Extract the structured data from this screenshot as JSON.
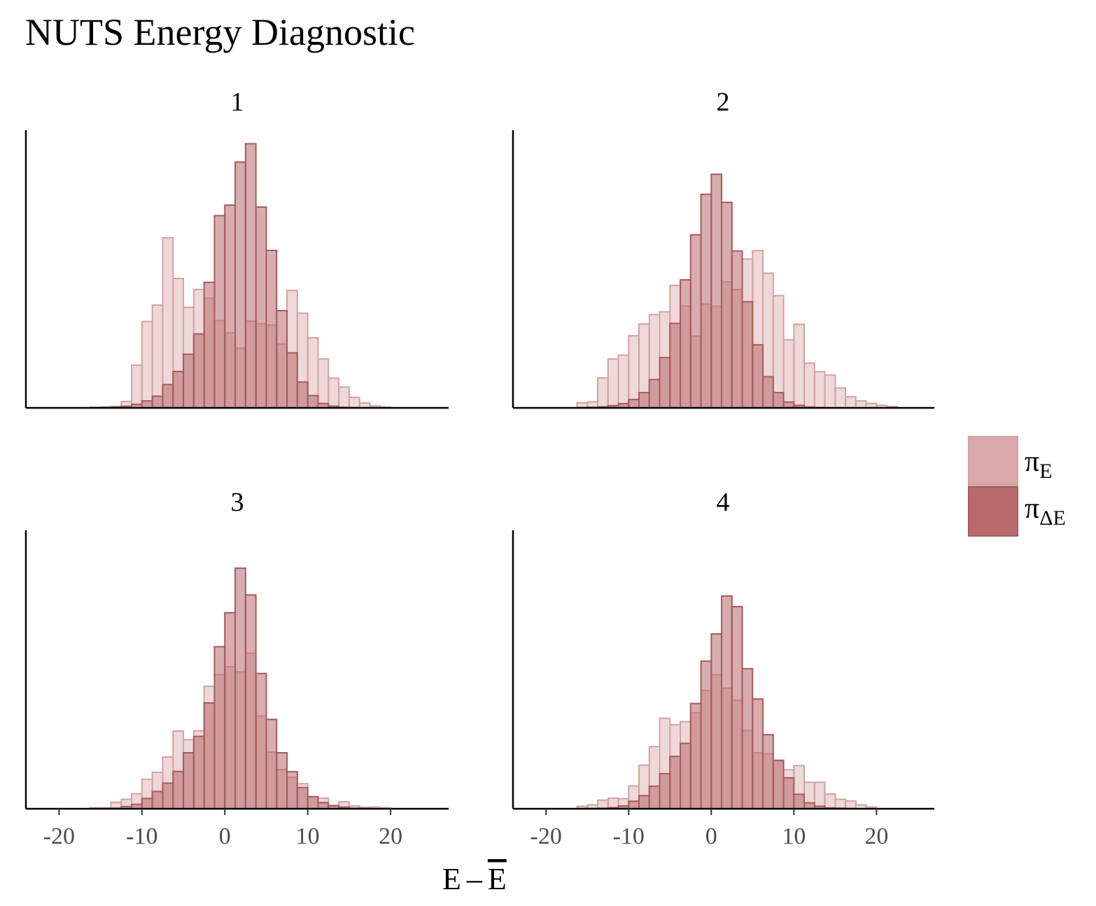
{
  "chart_data": {
    "type": "bar",
    "title": "NUTS Energy Diagnostic",
    "xlabel": "E – E̅",
    "ylabel": "",
    "xlim": [
      -24,
      27
    ],
    "xticks": [
      -20,
      -10,
      0,
      10,
      20
    ],
    "xtick_labels": [
      "-20",
      "-10",
      "0",
      "10",
      "20"
    ],
    "bin_width": 1.25,
    "legend": {
      "placement": "right",
      "entries": [
        {
          "key": "pi_E",
          "symbol": "π",
          "subscript": "E",
          "color": "#d9a8a8"
        },
        {
          "key": "pi_dE",
          "symbol": "π",
          "subscript": "ΔE",
          "color": "#b86a6d"
        }
      ]
    },
    "colors": {
      "pi_E_fill": "#d9a8a8",
      "pi_E_stroke": "#d3a3a4",
      "pi_dE_fill": "#b86a6d",
      "pi_dE_stroke": "#a85a5d"
    },
    "panels": [
      {
        "label": "1",
        "ymax": 100,
        "bin_start": [
          -16.25,
          -15.0,
          -13.75,
          -12.5,
          -11.25,
          -10.0,
          -8.75,
          -7.5,
          -6.25,
          -5.0,
          -3.75,
          -2.5,
          -1.25,
          0.0,
          1.25,
          2.5,
          3.75,
          5.0,
          6.25,
          7.5,
          8.75,
          10.0,
          11.25,
          12.5,
          13.75,
          15.0,
          16.25,
          17.5,
          18.75
        ],
        "pi_E": [
          0.2,
          0.3,
          0.5,
          2.3,
          15.4,
          31.1,
          37.0,
          61.2,
          46.6,
          36.2,
          42.6,
          39.5,
          31.4,
          27.0,
          21.5,
          31.2,
          30.3,
          29.8,
          23.0,
          42.3,
          34.1,
          25.2,
          17.6,
          10.7,
          7.5,
          3.8,
          1.8,
          0.7,
          0.3
        ],
        "pi_dE": [
          0.1,
          0.2,
          0.3,
          0.6,
          1.3,
          2.5,
          4.2,
          8.4,
          13.1,
          19.3,
          26.6,
          45.2,
          69.2,
          73.0,
          88.5,
          95.1,
          72.3,
          56.7,
          35.0,
          19.8,
          9.3,
          4.4,
          1.6,
          0.6,
          0.2,
          0.1,
          0.0,
          0.0,
          0.0
        ]
      },
      {
        "label": "2",
        "ymax": 100,
        "bin_start": [
          -16.25,
          -15.0,
          -13.75,
          -12.5,
          -11.25,
          -10.0,
          -8.75,
          -7.5,
          -6.25,
          -5.0,
          -3.75,
          -2.5,
          -1.25,
          0.0,
          1.25,
          2.5,
          3.75,
          5.0,
          6.25,
          7.5,
          8.75,
          10.0,
          11.25,
          12.5,
          13.75,
          15.0,
          16.25,
          17.5,
          18.75
        ],
        "pi_E": [
          1.8,
          2.2,
          10.8,
          17.6,
          19.0,
          26.0,
          30.2,
          33.6,
          34.6,
          44.1,
          36.7,
          25.8,
          37.4,
          36.6,
          45.4,
          42.6,
          53.6,
          56.6,
          48.5,
          40.4,
          24.5,
          30.1,
          16.1,
          13.0,
          11.8,
          7.2,
          4.0,
          2.5,
          1.6,
          0.9,
          0.5
        ],
        "pi_dE": [
          0.1,
          0.2,
          0.4,
          0.8,
          1.5,
          3.0,
          5.5,
          10.2,
          18.1,
          30.4,
          46.1,
          62.3,
          76.9,
          84.1,
          74.0,
          56.5,
          38.2,
          22.7,
          11.2,
          5.5,
          2.1,
          0.9,
          0.3,
          0.1,
          0.0,
          0.0,
          0.0,
          0.0,
          0.0
        ],
        "bins_pi_E_start": [
          -16.25,
          -15.0,
          -13.75,
          -12.5,
          -11.25,
          -10.0,
          -8.75,
          -7.5,
          -6.25,
          -5.0,
          -3.75,
          -2.5,
          -1.25,
          0.0,
          1.25,
          2.5,
          3.75,
          5.0,
          6.25,
          7.5,
          8.75,
          10.0,
          11.25,
          12.5,
          13.75,
          15.0,
          16.25,
          17.5,
          18.75,
          20.0,
          21.25
        ]
      },
      {
        "label": "3",
        "ymax": 100,
        "bin_start": [
          -16.25,
          -15.0,
          -13.75,
          -12.5,
          -11.25,
          -10.0,
          -8.75,
          -7.5,
          -6.25,
          -5.0,
          -3.75,
          -2.5,
          -1.25,
          0.0,
          1.25,
          2.5,
          3.75,
          5.0,
          6.25,
          7.5,
          8.75,
          10.0,
          11.25,
          12.5,
          13.75,
          15.0,
          16.25,
          17.5,
          18.75
        ],
        "pi_E": [
          0.3,
          0.3,
          2.3,
          3.4,
          5.4,
          10.6,
          13.1,
          18.6,
          27.9,
          24.8,
          28.0,
          44.0,
          48.2,
          51.0,
          49.2,
          55.9,
          33.3,
          20.3,
          14.1,
          11.3,
          9.0,
          4.4,
          3.8,
          1.2,
          2.5,
          1.0,
          0.5,
          0.6,
          0.3
        ],
        "pi_dE": [
          0.1,
          0.1,
          0.2,
          0.8,
          1.6,
          3.7,
          6.2,
          9.2,
          13.4,
          20.1,
          26.0,
          38.0,
          58.2,
          70.4,
          86.4,
          76.8,
          48.6,
          32.1,
          20.1,
          13.3,
          7.6,
          4.3,
          2.2,
          1.1,
          0.6,
          0.2,
          0.1,
          0.0,
          0.0
        ]
      },
      {
        "label": "4",
        "ymax": 100,
        "bin_start": [
          -16.25,
          -15.0,
          -13.75,
          -12.5,
          -11.25,
          -10.0,
          -8.75,
          -7.5,
          -6.25,
          -5.0,
          -3.75,
          -2.5,
          -1.25,
          0.0,
          1.25,
          2.5,
          3.75,
          5.0,
          6.25,
          7.5,
          8.75,
          10.0,
          11.25,
          12.5,
          13.75,
          15.0,
          16.25,
          17.5,
          18.75
        ],
        "pi_E": [
          0.9,
          1.4,
          3.1,
          3.8,
          3.6,
          8.2,
          15.7,
          22.3,
          32.5,
          30.2,
          31.3,
          34.5,
          42.5,
          48.1,
          43.3,
          39.0,
          28.2,
          20.1,
          19.7,
          17.5,
          14.0,
          15.5,
          9.5,
          9.5,
          5.3,
          3.4,
          2.8,
          1.4,
          0.6
        ],
        "pi_dE": [
          0.1,
          0.1,
          0.2,
          0.4,
          1.0,
          2.7,
          4.7,
          8.1,
          12.6,
          18.8,
          23.5,
          37.8,
          53.0,
          62.8,
          76.4,
          72.6,
          50.3,
          39.4,
          26.6,
          17.3,
          11.1,
          5.2,
          2.1,
          0.9,
          0.3,
          0.2,
          0.1,
          0.0,
          0.0
        ]
      }
    ]
  }
}
